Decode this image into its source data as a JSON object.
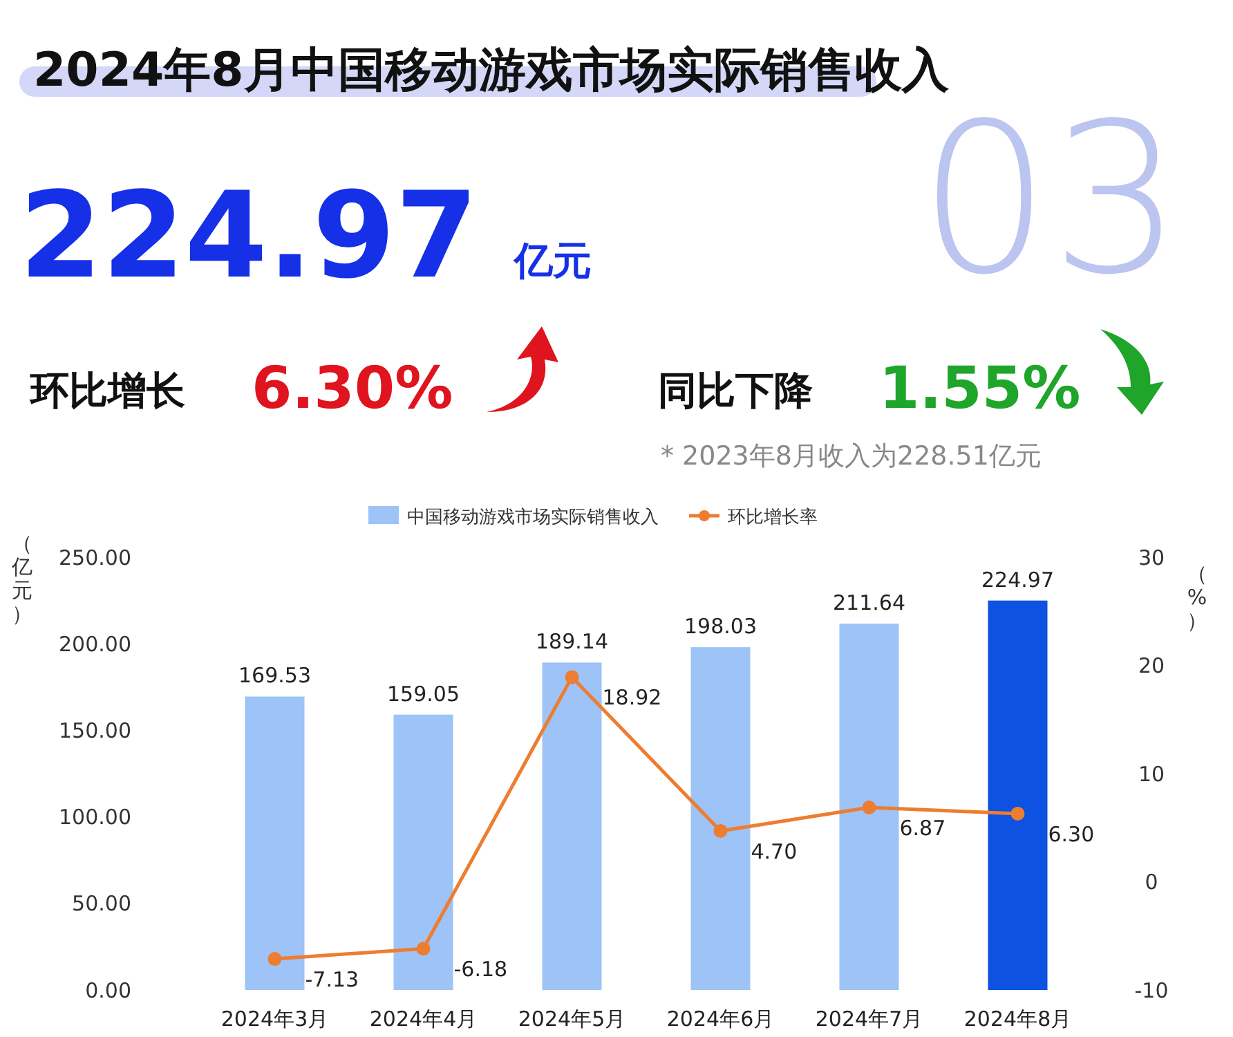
{
  "chart_data": {
    "type": "bar",
    "title": "2024年8月中国移动游戏市场实际销售收入",
    "annotations": [
      "03",
      "224.97",
      "亿元",
      "环比增长",
      "6.30%",
      "同比下降",
      "1.55%",
      "* 2023年8月收入为228.51亿元"
    ],
    "categories": [
      "2024年3月",
      "2024年4月",
      "2024年5月",
      "2024年6月",
      "2024年7月",
      "2024年8月"
    ],
    "series": [
      {
        "name": "中国移动游戏市场实际销售收入",
        "colors": [
          "#9dc3f7",
          "#9dc3f7",
          "#9dc3f7",
          "#9dc3f7",
          "#9dc3f7",
          "#0d52e0"
        ],
        "values": [
          169.53,
          159.05,
          189.14,
          198.03,
          211.64,
          224.97
        ],
        "value_labels": [
          "169.53",
          "159.05",
          "189.14",
          "198.03",
          "211.64",
          "224.97"
        ]
      },
      {
        "name": "环比增长率",
        "type": "line",
        "axis": "y2",
        "color": "#ed7d31",
        "values": [
          -7.13,
          -6.18,
          18.92,
          4.7,
          6.87,
          6.3
        ],
        "value_labels": [
          "-7.13",
          "-6.18",
          "18.92",
          "4.70",
          "6.87",
          "6.30"
        ]
      }
    ],
    "ylabel": "（亿元）",
    "y2label": "（%）",
    "ylim": [
      0,
      250
    ],
    "yticks": [
      {
        "value": 0,
        "label": "0.00"
      },
      {
        "value": 50,
        "label": "50.00"
      },
      {
        "value": 100,
        "label": "100.00"
      },
      {
        "value": 150,
        "label": "150.00"
      },
      {
        "value": 200,
        "label": "200.00"
      },
      {
        "value": 250,
        "label": "250.00"
      }
    ],
    "y2lim": [
      -10,
      30
    ],
    "y2ticks": [
      -10,
      0,
      10,
      20,
      30
    ],
    "legend": "top",
    "grid": false,
    "marker": "circle",
    "line_style": "solid"
  }
}
